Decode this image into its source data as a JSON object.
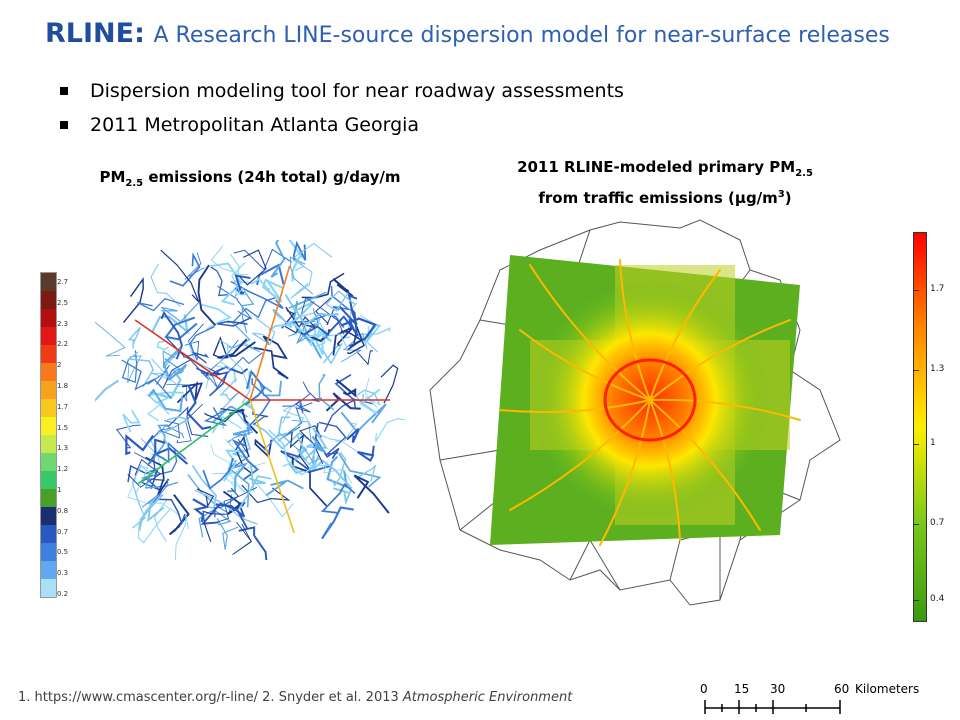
{
  "title": {
    "bold": "RLINE:",
    "rest": "A Research LINE-source dispersion model for near-surface releases"
  },
  "bullets": [
    "Dispersion modeling tool for near roadway assessments",
    "2011 Metropolitan Atlanta Georgia"
  ],
  "left_caption": {
    "prefix": "PM",
    "sub": "2.5",
    "suffix": " emissions (24h total) g/day/m"
  },
  "right_caption": {
    "line1_prefix": "2011 RLINE-modeled primary PM",
    "line1_sub": "2.5",
    "line2_prefix": "from traffic emissions  (μg/m",
    "line2_sup": "3",
    "line2_suffix": ")"
  },
  "left_legend": {
    "labels": [
      "2.7",
      "2.5",
      "2.3",
      "2.2",
      "2",
      "1.8",
      "1.7",
      "1.5",
      "1.3",
      "1.2",
      "1",
      "0.8",
      "0.7",
      "0.5",
      "0.3",
      "0.2"
    ],
    "colors": [
      "#5a3a2a",
      "#7a1a10",
      "#b01010",
      "#e01818",
      "#f03c14",
      "#f8781c",
      "#f8a020",
      "#f8c81c",
      "#f8f020",
      "#c8e850",
      "#70d870",
      "#38c868",
      "#48a028",
      "#183070",
      "#2858c0",
      "#3c80e0",
      "#60a8f0",
      "#a8e0f8"
    ]
  },
  "right_colorbar": {
    "labels": [
      "1.7",
      "1.3",
      "1",
      "0.7",
      "0.4"
    ],
    "colors": [
      "#ff0000",
      "#ff8800",
      "#ffee00",
      "#78c818",
      "#3a9a10"
    ]
  },
  "footer": {
    "text": "1. https://www.cmascenter.org/r-line/  2. Snyder et al. 2013 ",
    "italic": "Atmospheric Environment"
  },
  "scale_bar": {
    "ticks": [
      "0",
      "15",
      "30",
      "60"
    ],
    "unit": "Kilometers"
  }
}
